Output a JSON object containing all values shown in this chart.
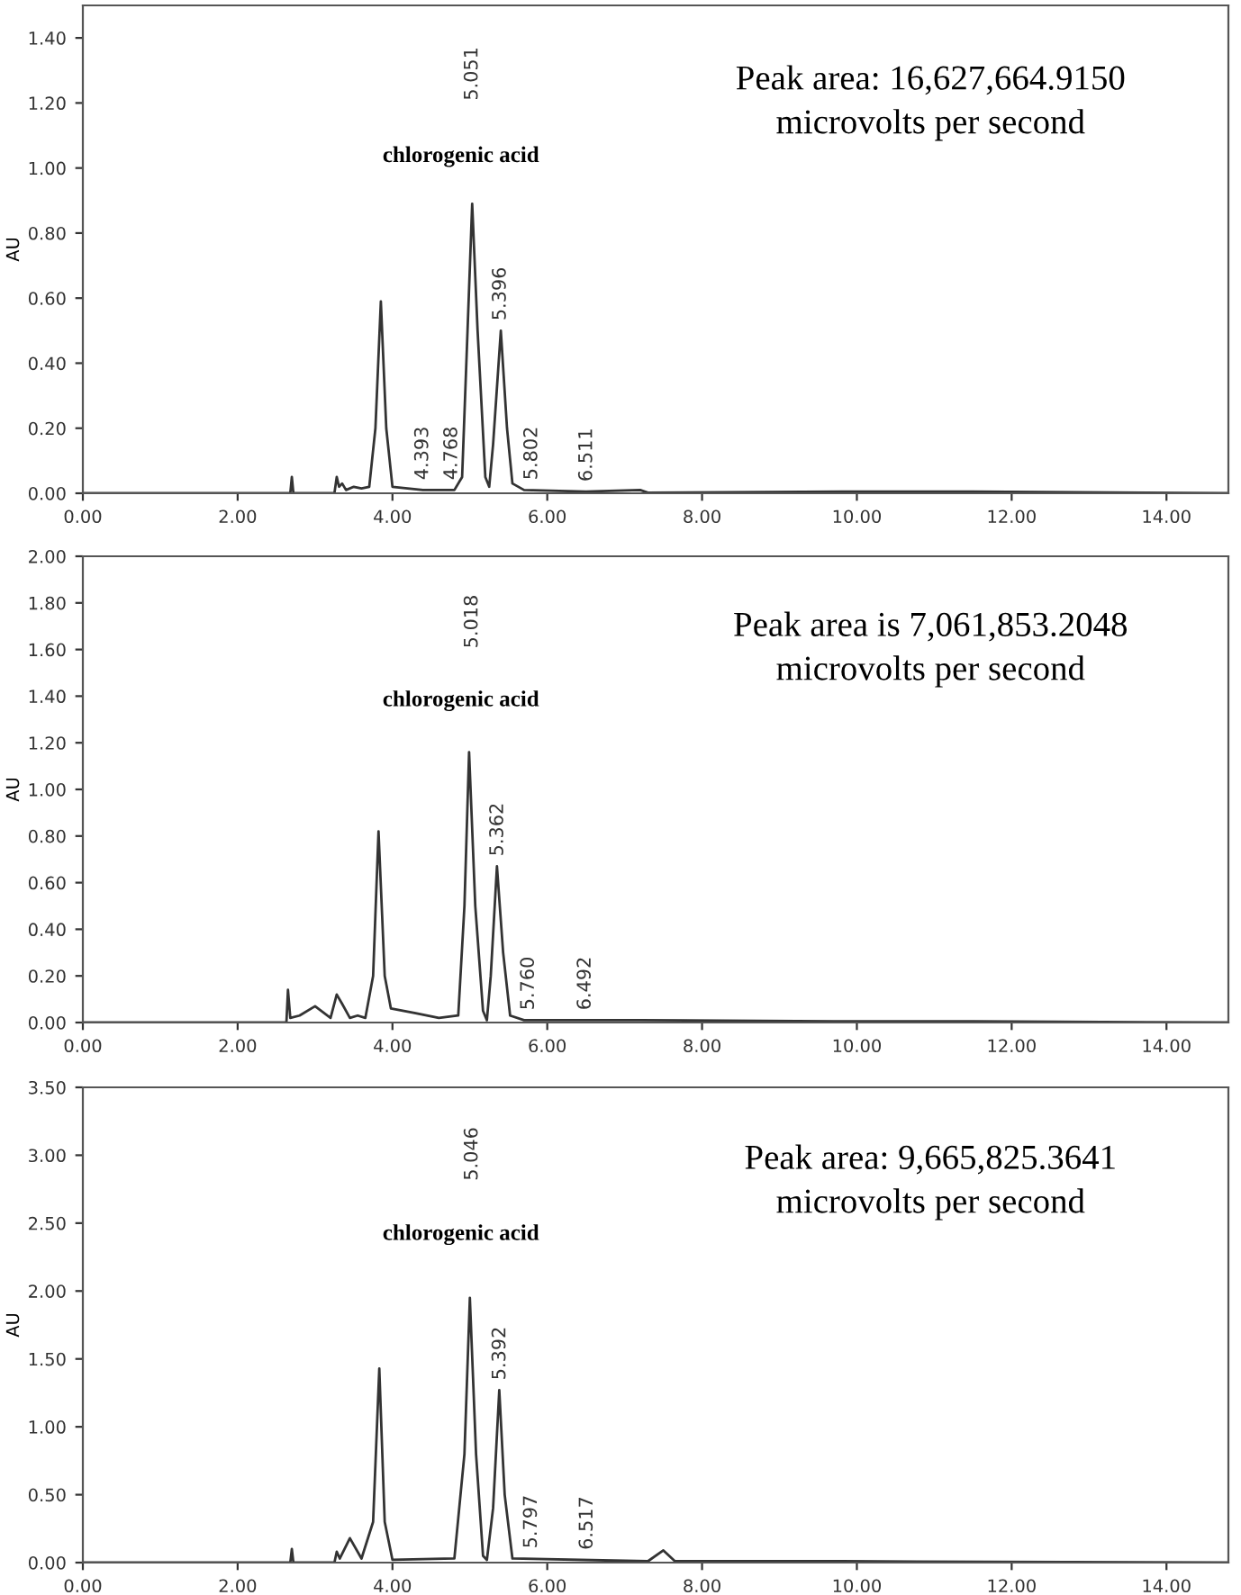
{
  "chart_data": [
    {
      "type": "line",
      "ylabel": "AU",
      "xlim": [
        0,
        14.8
      ],
      "ylim": [
        0,
        1.5
      ],
      "xticks": [
        {
          "value": 0,
          "label": "0.00"
        },
        {
          "value": 2,
          "label": "2.00"
        },
        {
          "value": 4,
          "label": "4.00"
        },
        {
          "value": 6,
          "label": "6.00"
        },
        {
          "value": 8,
          "label": "8.00"
        },
        {
          "value": 10,
          "label": "10.00"
        },
        {
          "value": 12,
          "label": "12.00"
        },
        {
          "value": 14,
          "label": "14.00"
        }
      ],
      "yticks": [
        {
          "value": 0,
          "label": "0.00"
        },
        {
          "value": 0.2,
          "label": "0.20"
        },
        {
          "value": 0.4,
          "label": "0.40"
        },
        {
          "value": 0.6,
          "label": "0.60"
        },
        {
          "value": 0.8,
          "label": "0.80"
        },
        {
          "value": 1.0,
          "label": "1.00"
        },
        {
          "value": 1.2,
          "label": "1.20"
        },
        {
          "value": 1.4,
          "label": "1.40"
        }
      ],
      "grid": false,
      "legend": false,
      "series": [
        {
          "color": "#333333",
          "x": [
            0,
            2.5,
            2.68,
            2.7,
            2.72,
            3.25,
            3.28,
            3.31,
            3.35,
            3.4,
            3.5,
            3.6,
            3.7,
            3.78,
            3.85,
            3.92,
            4.0,
            4.393,
            4.8,
            4.9,
            4.97,
            5.03,
            5.1,
            5.2,
            5.25,
            5.3,
            5.4,
            5.48,
            5.55,
            5.7,
            6.5,
            7.2,
            7.3,
            9.8,
            11.5,
            14.8
          ],
          "values": [
            0,
            0,
            0,
            0.05,
            0,
            0,
            0.05,
            0.02,
            0.03,
            0.01,
            0.02,
            0.015,
            0.02,
            0.2,
            0.59,
            0.2,
            0.02,
            0.01,
            0.01,
            0.05,
            0.5,
            0.89,
            0.5,
            0.05,
            0.02,
            0.15,
            0.5,
            0.2,
            0.03,
            0.01,
            0.005,
            0.01,
            0.002,
            0.005,
            0.005,
            0
          ]
        }
      ],
      "annotations": [
        "chlorogenic acid",
        "Peak area: 16,627,664.9150\nmicrovolts per second",
        {
          "text": "4.393",
          "x": 4.393,
          "y": 0.01
        },
        {
          "text": "4.768",
          "x": 4.768,
          "y": 0.01
        },
        "5.051",
        {
          "text": "5.396",
          "x": 5.396,
          "y": 0.5
        },
        {
          "text": "5.802",
          "x": 5.802,
          "y": 0.01
        },
        {
          "text": "6.511",
          "x": 6.511,
          "y": 0.005
        }
      ]
    },
    {
      "type": "line",
      "ylabel": "AU",
      "xlim": [
        0,
        14.8
      ],
      "ylim": [
        0,
        2.0
      ],
      "xticks": [
        {
          "value": 0,
          "label": "0.00"
        },
        {
          "value": 2,
          "label": "2.00"
        },
        {
          "value": 4,
          "label": "4.00"
        },
        {
          "value": 6,
          "label": "6.00"
        },
        {
          "value": 8,
          "label": "8.00"
        },
        {
          "value": 10,
          "label": "10.00"
        },
        {
          "value": 12,
          "label": "12.00"
        },
        {
          "value": 14,
          "label": "14.00"
        }
      ],
      "yticks": [
        {
          "value": 0,
          "label": "0.00"
        },
        {
          "value": 0.2,
          "label": "0.20"
        },
        {
          "value": 0.4,
          "label": "0.40"
        },
        {
          "value": 0.6,
          "label": "0.60"
        },
        {
          "value": 0.8,
          "label": "0.80"
        },
        {
          "value": 1.0,
          "label": "1.00"
        },
        {
          "value": 1.2,
          "label": "1.20"
        },
        {
          "value": 1.4,
          "label": "1.40"
        },
        {
          "value": 1.6,
          "label": "1.60"
        },
        {
          "value": 1.8,
          "label": "1.80"
        },
        {
          "value": 2.0,
          "label": "2.00"
        }
      ],
      "grid": false,
      "legend": false,
      "series": [
        {
          "color": "#333333",
          "x": [
            0,
            2.5,
            2.63,
            2.65,
            2.68,
            2.8,
            3.0,
            3.2,
            3.28,
            3.35,
            3.45,
            3.55,
            3.65,
            3.75,
            3.82,
            3.9,
            3.98,
            4.3,
            4.6,
            4.85,
            4.93,
            4.99,
            5.07,
            5.17,
            5.22,
            5.27,
            5.35,
            5.43,
            5.52,
            5.7,
            7.2,
            9.7,
            11.5,
            14.8
          ],
          "values": [
            0,
            0,
            0,
            0.14,
            0.02,
            0.03,
            0.07,
            0.02,
            0.12,
            0.08,
            0.02,
            0.03,
            0.02,
            0.2,
            0.82,
            0.2,
            0.06,
            0.04,
            0.02,
            0.03,
            0.5,
            1.16,
            0.5,
            0.05,
            0.01,
            0.2,
            0.67,
            0.3,
            0.03,
            0.01,
            0.01,
            0.005,
            0.005,
            0
          ]
        }
      ],
      "annotations": [
        "chlorogenic acid",
        "Peak area is 7,061,853.2048\nmicrovolts per second",
        "5.018",
        {
          "text": "5.362",
          "x": 5.362,
          "y": 0.67
        },
        {
          "text": "5.760",
          "x": 5.76,
          "y": 0.01
        },
        {
          "text": "6.492",
          "x": 6.492,
          "y": 0.01
        }
      ]
    },
    {
      "type": "line",
      "ylabel": "AU",
      "xlim": [
        0,
        14.8
      ],
      "ylim": [
        0,
        3.5
      ],
      "xticks": [
        {
          "value": 0,
          "label": "0.00"
        },
        {
          "value": 2,
          "label": "2.00"
        },
        {
          "value": 4,
          "label": "4.00"
        },
        {
          "value": 6,
          "label": "6.00"
        },
        {
          "value": 8,
          "label": "8.00"
        },
        {
          "value": 10,
          "label": "10.00"
        },
        {
          "value": 12,
          "label": "12.00"
        },
        {
          "value": 14,
          "label": "14.00"
        }
      ],
      "yticks": [
        {
          "value": 0,
          "label": "0.00"
        },
        {
          "value": 0.5,
          "label": "0.50"
        },
        {
          "value": 1.0,
          "label": "1.00"
        },
        {
          "value": 1.5,
          "label": "1.50"
        },
        {
          "value": 2.0,
          "label": "2.00"
        },
        {
          "value": 2.5,
          "label": "2.50"
        },
        {
          "value": 3.0,
          "label": "3.00"
        },
        {
          "value": 3.5,
          "label": "3.50"
        }
      ],
      "grid": false,
      "legend": false,
      "series": [
        {
          "color": "#333333",
          "x": [
            0,
            2.5,
            2.68,
            2.7,
            2.72,
            3.25,
            3.28,
            3.32,
            3.45,
            3.6,
            3.75,
            3.83,
            3.9,
            4.0,
            4.8,
            4.93,
            5.0,
            5.08,
            5.17,
            5.22,
            5.3,
            5.38,
            5.45,
            5.55,
            7.3,
            7.5,
            7.65,
            9.8,
            14.8
          ],
          "values": [
            0,
            0,
            0,
            0.1,
            0,
            0,
            0.08,
            0.03,
            0.18,
            0.03,
            0.3,
            1.43,
            0.3,
            0.02,
            0.03,
            0.8,
            1.95,
            0.8,
            0.05,
            0.02,
            0.4,
            1.27,
            0.5,
            0.03,
            0.01,
            0.09,
            0.01,
            0.01,
            0
          ]
        }
      ],
      "annotations": [
        "chlorogenic acid",
        "Peak area: 9,665,825.3641\nmicrovolts per second",
        "5.046",
        {
          "text": "5.392",
          "x": 5.392,
          "y": 1.27
        },
        {
          "text": "5.797",
          "x": 5.797,
          "y": 0.03
        },
        {
          "text": "6.517",
          "x": 6.517,
          "y": 0.02
        }
      ]
    }
  ]
}
